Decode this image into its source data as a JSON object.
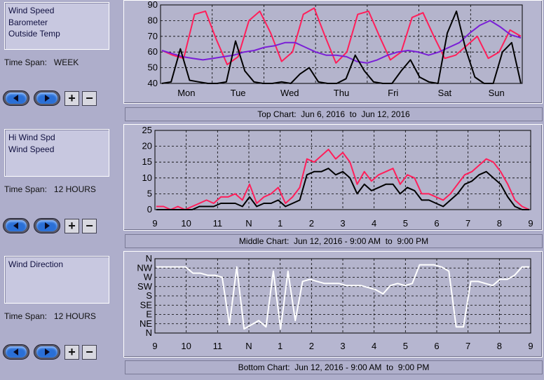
{
  "panels": [
    {
      "legend": [
        "Wind Speed",
        "Barometer",
        "Outside Temp"
      ],
      "timespan_label": "Time Span:",
      "timespan_value": "WEEK",
      "caption": "Top Chart:  Jun 6, 2016  to  Jun 12, 2016"
    },
    {
      "legend": [
        "Hi Wind Spd",
        "Wind Speed"
      ],
      "timespan_label": "Time Span:",
      "timespan_value": "12 HOURS",
      "caption": "Middle Chart:  Jun 12, 2016 - 9:00 AM  to  9:00 PM"
    },
    {
      "legend": [
        "Wind Direction"
      ],
      "timespan_label": "Time Span:",
      "timespan_value": "12 HOURS",
      "caption": "Bottom Chart:  Jun 12, 2016 - 9:00 AM  to  9:00 PM"
    }
  ],
  "buttons": {
    "zoom_in": "+",
    "zoom_out": "−"
  },
  "icons": {
    "prev": "left-arrow-icon",
    "next": "right-arrow-icon"
  },
  "colors": {
    "wind_speed": "#000000",
    "barometer": "#7a1fd6",
    "outside_temp": "#ff1f5a",
    "hi_wind": "#ff1f5a",
    "wind_direction": "#ffffff"
  },
  "chart_data": [
    {
      "type": "line",
      "x_ticks": [
        "Mon",
        "Tue",
        "Wed",
        "Thu",
        "Fri",
        "Sat",
        "Sun"
      ],
      "y_ticks": [
        40,
        50,
        60,
        70,
        80,
        90
      ],
      "ylim": [
        40,
        90
      ],
      "grid": true,
      "series": [
        {
          "name": "Outside Temp",
          "values": [
            61,
            58,
            56,
            84,
            86,
            68,
            52,
            57,
            80,
            86,
            72,
            54,
            60,
            84,
            88,
            70,
            53,
            60,
            84,
            86,
            70,
            55,
            60,
            82,
            85,
            70,
            56,
            58,
            64,
            70,
            56,
            60,
            74,
            70
          ]
        },
        {
          "name": "Barometer",
          "values": [
            61,
            59,
            57,
            56,
            55,
            56,
            57,
            58,
            60,
            61,
            63,
            64,
            66,
            66,
            63,
            60,
            58,
            58,
            57,
            54,
            53,
            55,
            58,
            60,
            61,
            60,
            58,
            60,
            63,
            66,
            72,
            77,
            80,
            76,
            71,
            69
          ]
        },
        {
          "name": "Wind Speed",
          "values": [
            40,
            41,
            62,
            42,
            41,
            40,
            40,
            41,
            67,
            48,
            41,
            40,
            40,
            41,
            40,
            46,
            50,
            41,
            40,
            40,
            43,
            58,
            48,
            41,
            40,
            40,
            48,
            55,
            44,
            41,
            40,
            72,
            86,
            62,
            44,
            40,
            40,
            60,
            66,
            40
          ]
        }
      ]
    },
    {
      "type": "line",
      "x_ticks": [
        "9",
        "10",
        "11",
        "N",
        "1",
        "2",
        "3",
        "4",
        "5",
        "6",
        "7",
        "8",
        "9"
      ],
      "y_ticks": [
        0,
        5,
        10,
        15,
        20,
        25
      ],
      "ylim": [
        0,
        25
      ],
      "grid": true,
      "series": [
        {
          "name": "Hi Wind Spd",
          "values": [
            1,
            1,
            0,
            1,
            0,
            1,
            2,
            3,
            2,
            4,
            4,
            5,
            3,
            8,
            2,
            4,
            5,
            7,
            2,
            4,
            7,
            16,
            15,
            17,
            19,
            16,
            18,
            15,
            8,
            12,
            9,
            11,
            12,
            13,
            8,
            11,
            10,
            5,
            5,
            4,
            3,
            5,
            8,
            11,
            12,
            14,
            16,
            15,
            12,
            8,
            3,
            1,
            0
          ]
        },
        {
          "name": "Wind Speed",
          "values": [
            0,
            0,
            0,
            0,
            0,
            0,
            1,
            1,
            1,
            2,
            2,
            2,
            1,
            4,
            1,
            2,
            2,
            3,
            1,
            2,
            3,
            11,
            12,
            12,
            13,
            11,
            12,
            10,
            5,
            8,
            6,
            7,
            8,
            8,
            5,
            7,
            6,
            3,
            3,
            2,
            1,
            3,
            5,
            8,
            9,
            11,
            12,
            10,
            8,
            4,
            1,
            0,
            0
          ]
        }
      ]
    },
    {
      "type": "scatter",
      "x_ticks": [
        "9",
        "10",
        "11",
        "N",
        "1",
        "2",
        "3",
        "4",
        "5",
        "6",
        "7",
        "8",
        "9"
      ],
      "y_ticks": [
        "N",
        "NW",
        "W",
        "SW",
        "S",
        "SE",
        "E",
        "NE",
        "N"
      ],
      "ylim": [
        0,
        360
      ],
      "grid": true,
      "series": [
        {
          "name": "Wind Direction",
          "values": [
            320,
            320,
            320,
            320,
            320,
            290,
            290,
            280,
            280,
            270,
            40,
            320,
            20,
            40,
            60,
            30,
            300,
            20,
            300,
            60,
            250,
            260,
            250,
            240,
            240,
            240,
            230,
            230,
            230,
            220,
            210,
            190,
            230,
            240,
            230,
            240,
            330,
            330,
            330,
            320,
            300,
            30,
            30,
            250,
            250,
            240,
            230,
            260,
            260,
            280,
            320,
            320
          ]
        }
      ]
    }
  ]
}
